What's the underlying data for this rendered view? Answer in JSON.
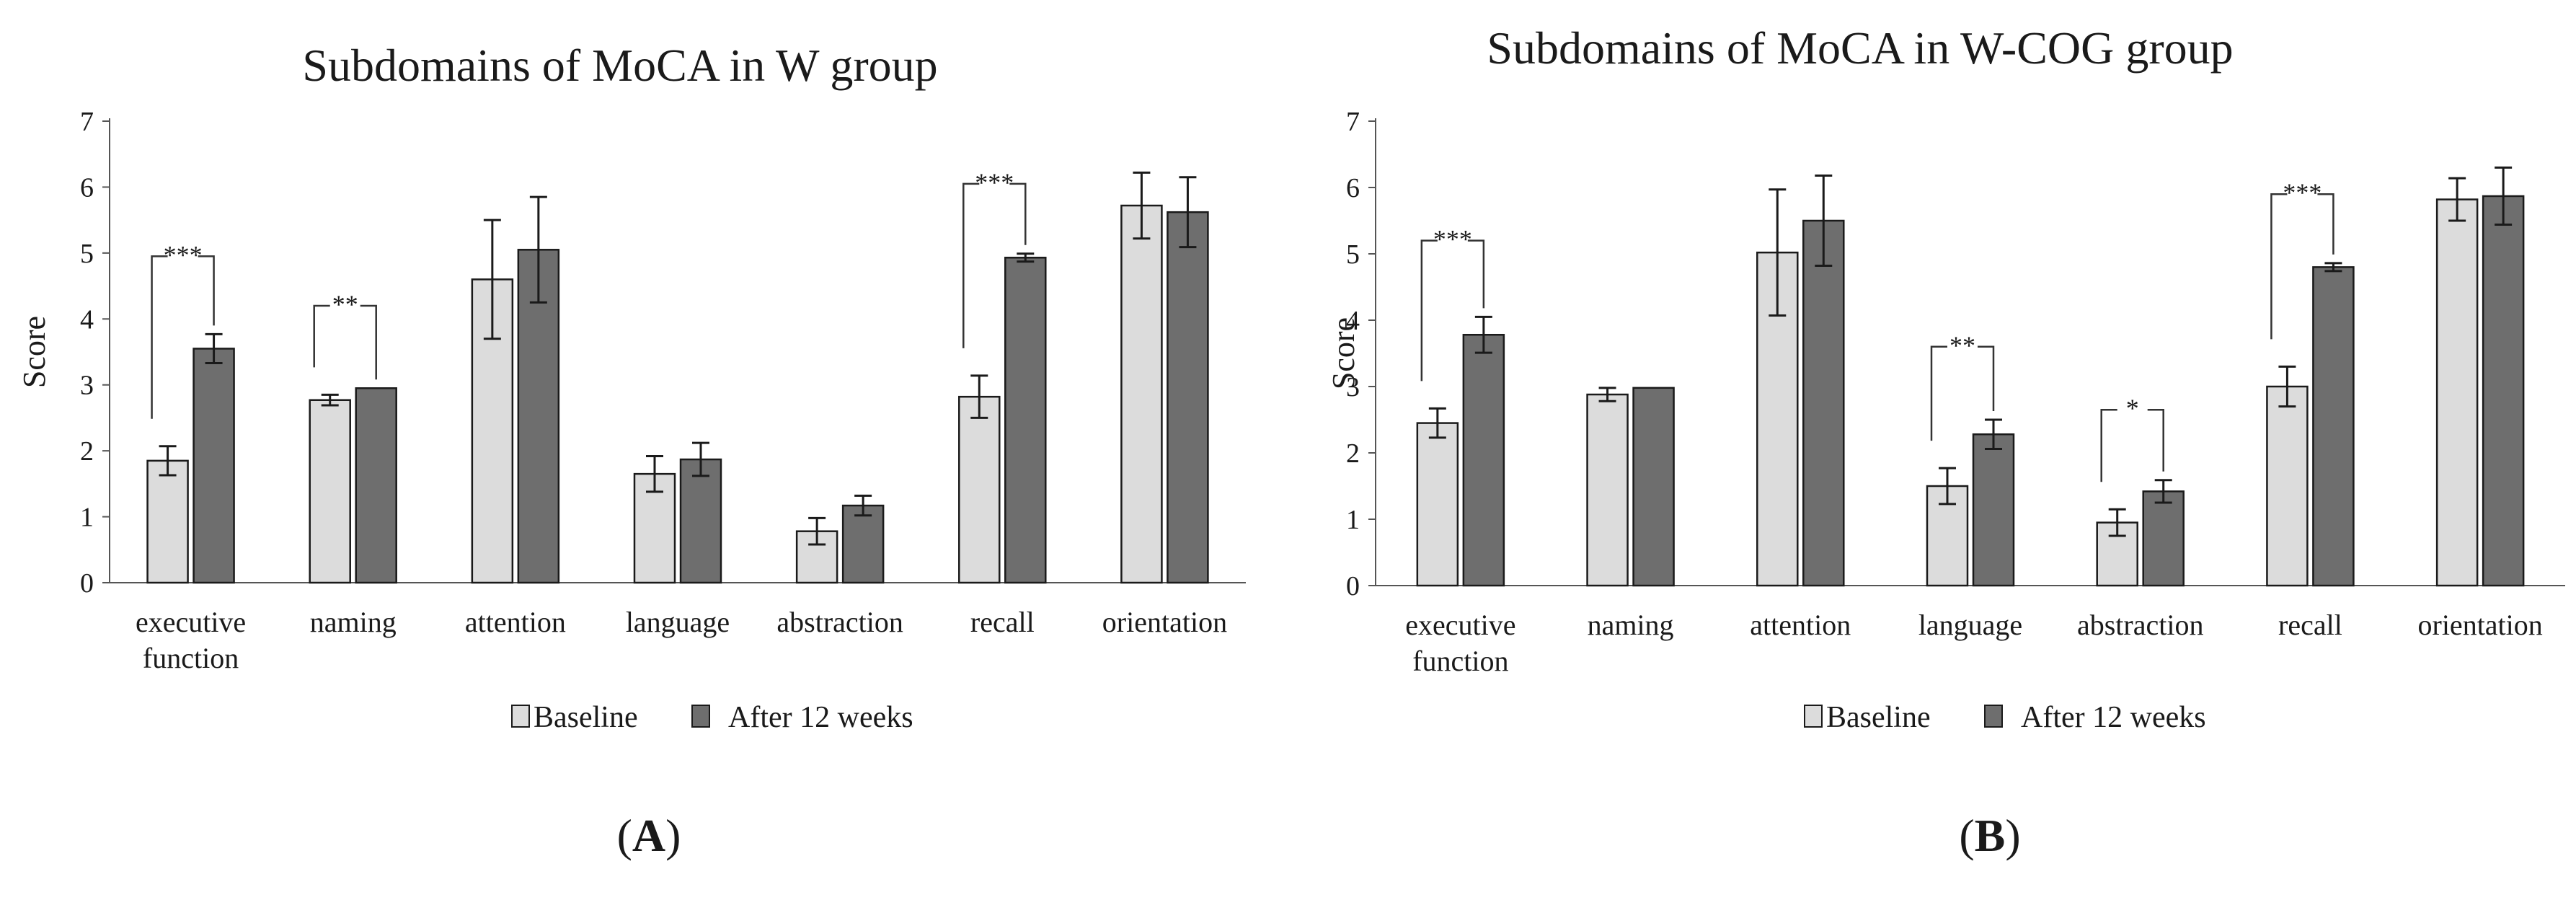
{
  "colors": {
    "baseline": "#dcdcdc",
    "after": "#6e6e6e",
    "stroke": "#1a1a1a"
  },
  "chart_data": [
    {
      "type": "bar",
      "panel_label": "A",
      "title": "Subdomains of MoCA in W group",
      "ylabel": "Score",
      "xlabel": "",
      "ylim": [
        0,
        7
      ],
      "yticks": [
        0,
        1,
        2,
        3,
        4,
        5,
        6,
        7
      ],
      "categories": [
        [
          "executive",
          "function"
        ],
        [
          "naming"
        ],
        [
          "attention"
        ],
        [
          "language"
        ],
        [
          "abstraction"
        ],
        [
          "recall"
        ],
        [
          "orientation"
        ]
      ],
      "series": [
        {
          "name": "Baseline",
          "values": [
            1.85,
            2.77,
            4.6,
            1.65,
            0.78,
            2.82,
            5.72
          ],
          "errors": [
            0.22,
            0.08,
            0.9,
            0.27,
            0.2,
            0.32,
            0.5
          ]
        },
        {
          "name": "After 12 weeks",
          "values": [
            3.55,
            2.95,
            5.05,
            1.87,
            1.17,
            4.93,
            5.62
          ],
          "errors": [
            0.22,
            0.0,
            0.8,
            0.25,
            0.15,
            0.06,
            0.53
          ]
        }
      ],
      "significance": [
        {
          "category": 0,
          "label": "***",
          "bracket_top": 4.95
        },
        {
          "category": 1,
          "label": "**",
          "bracket_top": 4.2
        },
        {
          "category": 5,
          "label": "***",
          "bracket_top": 6.05
        }
      ],
      "legend": [
        "Baseline",
        "After 12 weeks"
      ]
    },
    {
      "type": "bar",
      "panel_label": "B",
      "title": "Subdomains of MoCA in W-COG group",
      "ylabel": "Score",
      "xlabel": "",
      "ylim": [
        0,
        7
      ],
      "yticks": [
        0,
        1,
        2,
        3,
        4,
        5,
        6,
        7
      ],
      "categories": [
        [
          "executive",
          "function"
        ],
        [
          "naming"
        ],
        [
          "attention"
        ],
        [
          "language"
        ],
        [
          "abstraction"
        ],
        [
          "recall"
        ],
        [
          "orientation"
        ]
      ],
      "series": [
        {
          "name": "Baseline",
          "values": [
            2.45,
            2.88,
            5.02,
            1.5,
            0.95,
            3.0,
            5.82
          ],
          "errors": [
            0.22,
            0.1,
            0.95,
            0.27,
            0.2,
            0.3,
            0.32
          ]
        },
        {
          "name": "After 12 weeks",
          "values": [
            3.78,
            2.98,
            5.5,
            2.28,
            1.42,
            4.8,
            5.87
          ],
          "errors": [
            0.27,
            0.0,
            0.68,
            0.22,
            0.17,
            0.06,
            0.43
          ]
        }
      ],
      "significance": [
        {
          "category": 0,
          "label": "***",
          "bracket_top": 5.2
        },
        {
          "category": 3,
          "label": "**",
          "bracket_top": 3.6
        },
        {
          "category": 4,
          "label": "*",
          "bracket_top": 2.65
        },
        {
          "category": 5,
          "label": "***",
          "bracket_top": 5.9
        }
      ],
      "legend": [
        "Baseline",
        "After 12 weeks"
      ]
    }
  ]
}
